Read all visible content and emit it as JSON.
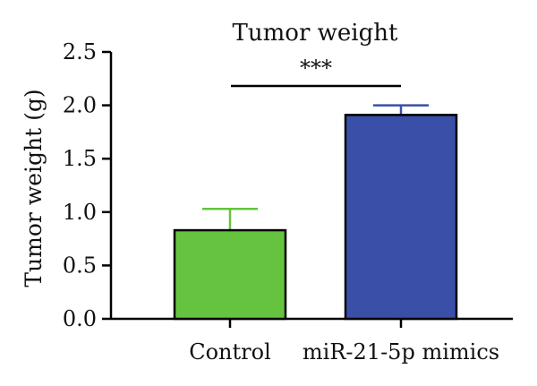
{
  "chart_data": {
    "type": "bar",
    "title": "Tumor weight",
    "xlabel": "",
    "ylabel": "Tumor weight (g)",
    "ylim": [
      0,
      2.5
    ],
    "yticks": [
      "0.0",
      "0.5",
      "1.0",
      "1.5",
      "2.0",
      "2.5"
    ],
    "categories": [
      "Control",
      "miR-21-5p mimics"
    ],
    "values": [
      0.83,
      1.91
    ],
    "errors": [
      0.2,
      0.09
    ],
    "colors": [
      "#66c33f",
      "#3a4fa8"
    ],
    "error_colors": [
      "#66c33f",
      "#3a4fa8"
    ],
    "grid": false,
    "legend": false,
    "annotations": [
      {
        "text": "***",
        "between": [
          "Control",
          "miR-21-5p mimics"
        ]
      }
    ]
  }
}
